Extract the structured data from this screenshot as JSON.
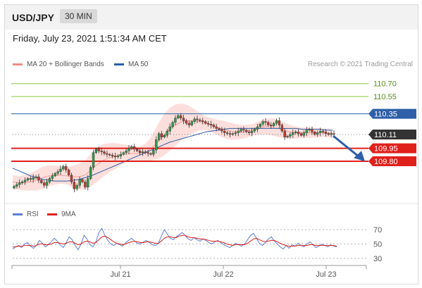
{
  "header": {
    "symbol": "USD/JPY",
    "timeframe": "30 MIN"
  },
  "date_line": "Friday, July 23, 2021 1:51:34 AM CET",
  "legend": {
    "ma20": {
      "label": "MA 20 + Bollinger Bands",
      "color": "#f08c84"
    },
    "ma50": {
      "label": "MA 50",
      "color": "#2e5fa8"
    },
    "credit": "Research © 2021 Trading Central"
  },
  "rsi_legend": {
    "rsi": {
      "label": "RSI",
      "color": "#5b7fd1"
    },
    "ma9": {
      "label": "9MA",
      "color": "#e0201b"
    }
  },
  "colors": {
    "resistance": "#8cc63f",
    "pivot": "#2e5fa8",
    "support": "#e0201b",
    "current": "#333333",
    "up_candle": "#2e9a49",
    "down_candle": "#c0392b",
    "arrow": "#2e5fa8",
    "band_fill": "#fbd9d6"
  },
  "chart_data": [
    {
      "type": "candlestick",
      "title": "USD/JPY 30 MIN",
      "ylim": [
        109.4,
        110.82
      ],
      "x_ticks": [
        "Jul 21",
        "Jul 22",
        "Jul 23"
      ],
      "levels": [
        {
          "label": "110.70",
          "value": 110.7,
          "kind": "resistance"
        },
        {
          "label": "110.55",
          "value": 110.55,
          "kind": "resistance"
        },
        {
          "label": "110.35",
          "value": 110.35,
          "kind": "pivot"
        },
        {
          "label": "110.11",
          "value": 110.11,
          "kind": "current"
        },
        {
          "label": "109.95",
          "value": 109.95,
          "kind": "support"
        },
        {
          "label": "109.80",
          "value": 109.8,
          "kind": "support"
        }
      ],
      "close": [
        109.51,
        109.53,
        109.55,
        109.56,
        109.58,
        109.6,
        109.59,
        109.61,
        109.62,
        109.58,
        109.55,
        109.52,
        109.56,
        109.6,
        109.63,
        109.66,
        109.68,
        109.71,
        109.74,
        109.7,
        109.64,
        109.56,
        109.48,
        109.52,
        109.59,
        109.56,
        109.5,
        109.6,
        109.73,
        109.9,
        109.94,
        109.92,
        109.91,
        109.89,
        109.88,
        109.87,
        109.86,
        109.85,
        109.86,
        109.88,
        109.9,
        109.92,
        109.95,
        109.97,
        109.94,
        109.92,
        109.9,
        109.91,
        109.9,
        109.89,
        109.88,
        109.93,
        110.05,
        110.12,
        110.08,
        110.1,
        110.15,
        110.2,
        110.25,
        110.3,
        110.33,
        110.3,
        110.27,
        110.24,
        110.22,
        110.26,
        110.29,
        110.28,
        110.27,
        110.26,
        110.24,
        110.23,
        110.22,
        110.2,
        110.18,
        110.17,
        110.15,
        110.13,
        110.12,
        110.11,
        110.12,
        110.13,
        110.15,
        110.17,
        110.16,
        110.14,
        110.13,
        110.15,
        110.17,
        110.2,
        110.23,
        110.26,
        110.25,
        110.22,
        110.21,
        110.24,
        110.27,
        110.22,
        110.15,
        110.08,
        110.09,
        110.11,
        110.13,
        110.14,
        110.12,
        110.1,
        110.13,
        110.16,
        110.17,
        110.14,
        110.11,
        110.13,
        110.15,
        110.14,
        110.12,
        110.11,
        110.12,
        110.11
      ],
      "ma50": [
        109.72,
        109.69,
        109.66,
        109.63,
        109.61,
        109.59,
        109.58,
        109.57,
        109.57,
        109.57,
        109.58,
        109.59,
        109.61,
        109.63,
        109.66,
        109.69,
        109.72,
        109.75,
        109.78,
        109.81,
        109.84,
        109.87,
        109.9,
        109.93,
        109.96,
        109.99,
        110.02,
        110.04,
        110.06,
        110.08,
        110.1,
        110.12,
        110.14,
        110.15,
        110.16,
        110.17,
        110.18,
        110.18,
        110.18,
        110.18,
        110.18,
        110.18,
        110.18,
        110.18,
        110.18,
        110.18,
        110.18,
        110.18,
        110.17,
        110.17,
        110.17,
        110.17,
        110.16,
        110.16
      ],
      "ma20": [
        109.56,
        109.55,
        109.55,
        109.56,
        109.58,
        109.61,
        109.63,
        109.64,
        109.64,
        109.63,
        109.62,
        109.62,
        109.64,
        109.7,
        109.76,
        109.81,
        109.84,
        109.86,
        109.88,
        109.89,
        109.89,
        109.89,
        109.9,
        109.95,
        110.02,
        110.1,
        110.17,
        110.22,
        110.26,
        110.27,
        110.27,
        110.26,
        110.24,
        110.22,
        110.19,
        110.17,
        110.15,
        110.14,
        110.14,
        110.15,
        110.17,
        110.19,
        110.2,
        110.2,
        110.18,
        110.16,
        110.14,
        110.13,
        110.13,
        110.13,
        110.13,
        110.13,
        110.13,
        110.12
      ],
      "band_width": [
        0.08,
        0.08,
        0.09,
        0.1,
        0.12,
        0.13,
        0.12,
        0.11,
        0.1,
        0.1,
        0.13,
        0.15,
        0.17,
        0.19,
        0.2,
        0.19,
        0.17,
        0.15,
        0.12,
        0.1,
        0.08,
        0.08,
        0.1,
        0.14,
        0.2,
        0.24,
        0.25,
        0.24,
        0.21,
        0.18,
        0.14,
        0.1,
        0.08,
        0.08,
        0.09,
        0.1,
        0.1,
        0.09,
        0.08,
        0.07,
        0.07,
        0.08,
        0.09,
        0.1,
        0.1,
        0.09,
        0.08,
        0.07,
        0.06,
        0.06,
        0.06,
        0.05,
        0.05,
        0.05
      ]
    },
    {
      "type": "line",
      "title": "RSI",
      "ylim": [
        25,
        78
      ],
      "y_ticks": [
        "70",
        "50",
        "30"
      ],
      "series": [
        {
          "name": "RSI",
          "values": [
            43,
            46,
            48,
            45,
            50,
            52,
            47,
            44,
            48,
            55,
            51,
            46,
            49,
            53,
            58,
            54,
            49,
            45,
            52,
            60,
            56,
            48,
            42,
            50,
            62,
            57,
            49,
            46,
            53,
            66,
            72,
            62,
            55,
            50,
            48,
            51,
            49,
            47,
            52,
            55,
            58,
            54,
            51,
            50,
            53,
            55,
            52,
            49,
            48,
            51,
            61,
            70,
            64,
            58,
            56,
            60,
            63,
            66,
            62,
            57,
            55,
            59,
            56,
            54,
            57,
            55,
            52,
            50,
            53,
            55,
            52,
            49,
            47,
            45,
            48,
            51,
            49,
            47,
            50,
            56,
            62,
            65,
            58,
            51,
            48,
            52,
            57,
            60,
            54,
            50,
            46,
            43,
            48,
            44,
            49,
            47,
            51,
            48,
            46,
            50,
            53,
            49,
            45,
            47,
            50,
            48,
            46,
            49,
            47,
            46
          ]
        },
        {
          "name": "9MA",
          "values": [
            46,
            46,
            47,
            47,
            48,
            48,
            48,
            47,
            48,
            50,
            50,
            49,
            49,
            50,
            52,
            52,
            51,
            50,
            51,
            53,
            53,
            51,
            49,
            50,
            53,
            54,
            53,
            51,
            52,
            56,
            60,
            61,
            59,
            56,
            53,
            51,
            50,
            49,
            50,
            52,
            53,
            54,
            53,
            52,
            52,
            53,
            53,
            52,
            51,
            51,
            54,
            58,
            60,
            60,
            59,
            59,
            61,
            62,
            62,
            60,
            59,
            59,
            58,
            57,
            57,
            56,
            55,
            54,
            54,
            54,
            53,
            52,
            50,
            49,
            48,
            49,
            49,
            49,
            49,
            51,
            54,
            57,
            58,
            56,
            54,
            53,
            54,
            55,
            55,
            53,
            51,
            49,
            48,
            47,
            47,
            47,
            48,
            48,
            48,
            48,
            49,
            49,
            48,
            48,
            48,
            48,
            48,
            48,
            48,
            47
          ]
        }
      ]
    }
  ]
}
